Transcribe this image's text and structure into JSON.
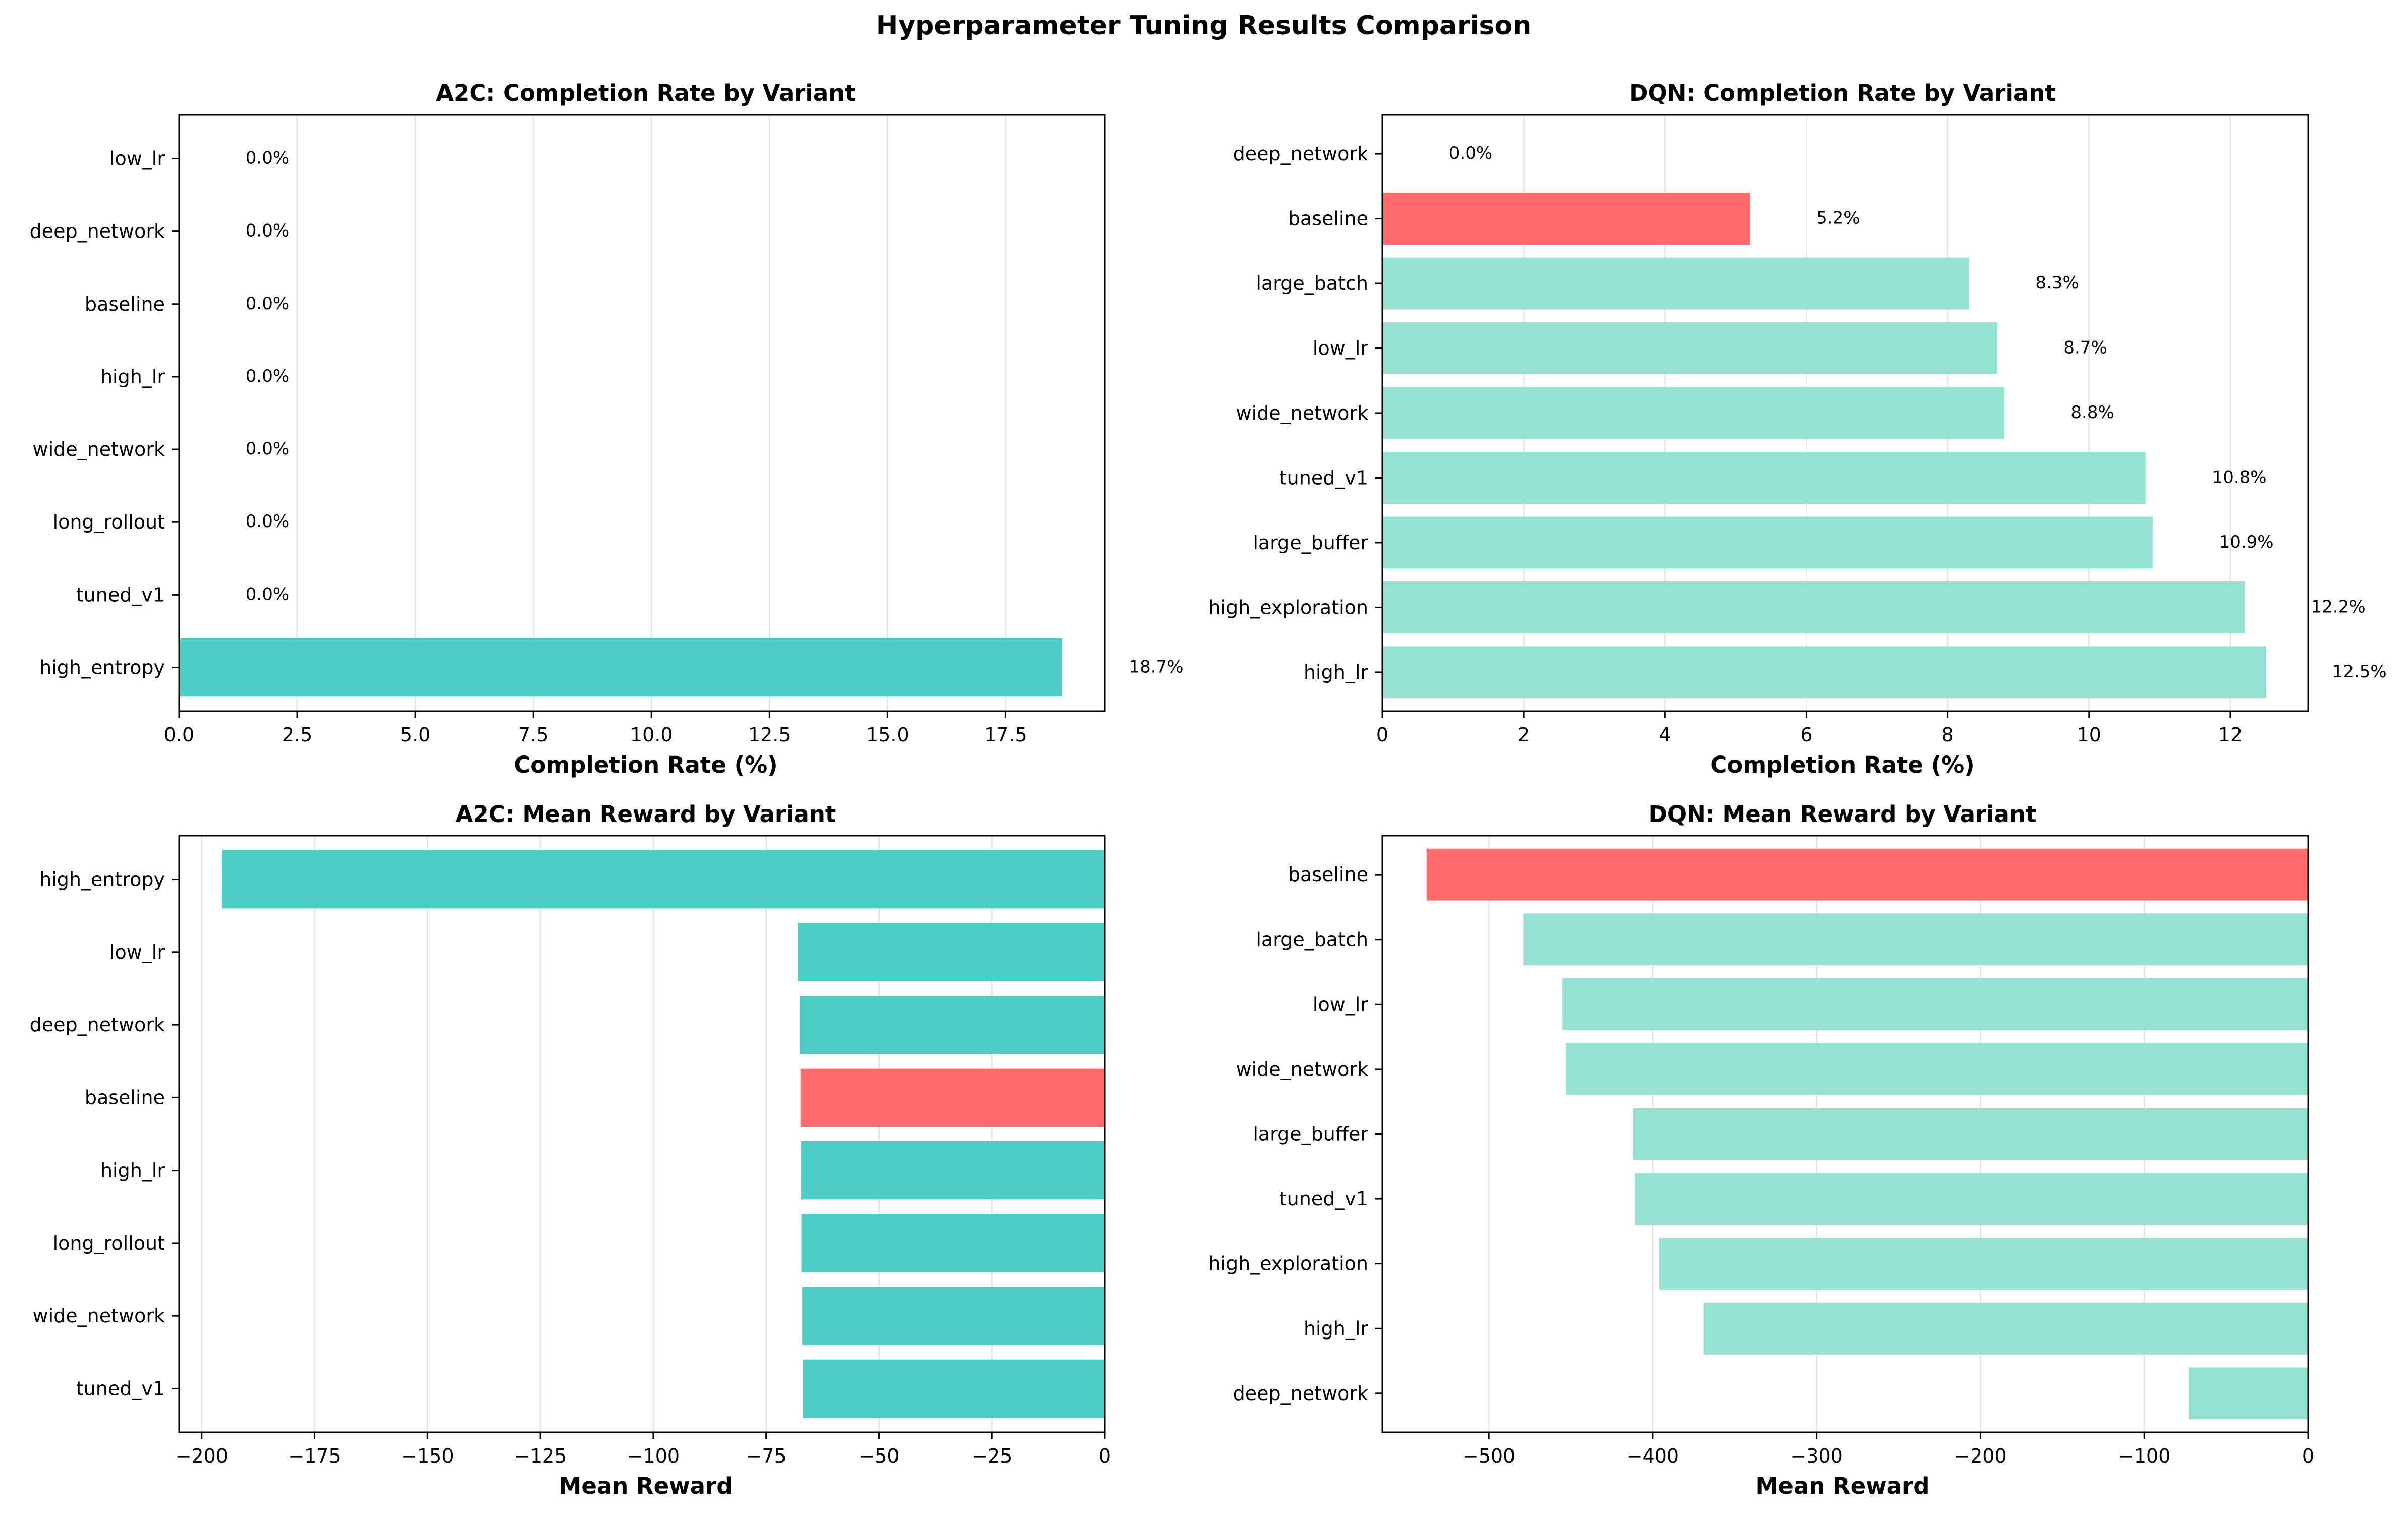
{
  "title": "Hyperparameter Tuning Results Comparison",
  "colors": {
    "default": "#4ecdc4",
    "baseline": "#ff6b6b",
    "dqn": "#95e1d3",
    "grid": "#e6e6e6"
  },
  "chart_data": [
    {
      "type": "bar",
      "orientation": "horizontal",
      "title": "A2C: Completion Rate by Variant",
      "xlabel": "Completion Rate (%)",
      "categories": [
        "low_lr",
        "deep_network",
        "baseline",
        "high_lr",
        "wide_network",
        "long_rollout",
        "tuned_v1",
        "high_entropy"
      ],
      "values": [
        0.0,
        0.0,
        0.0,
        0.0,
        0.0,
        0.0,
        0.0,
        18.7
      ],
      "value_labels": [
        "0.0%",
        "0.0%",
        "0.0%",
        "0.0%",
        "0.0%",
        "0.0%",
        "0.0%",
        "18.7%"
      ],
      "xlim": [
        0,
        19.6
      ],
      "xticks": [
        0,
        2.5,
        5,
        7.5,
        10,
        12.5,
        15,
        17.5
      ],
      "xtick_labels": [
        "0.0",
        "2.5",
        "5.0",
        "7.5",
        "10.0",
        "12.5",
        "15.0",
        "17.5"
      ],
      "highlight": "",
      "bar_color": "#4ecdc4",
      "grid": "x"
    },
    {
      "type": "bar",
      "orientation": "horizontal",
      "title": "DQN: Completion Rate by Variant",
      "xlabel": "Completion Rate (%)",
      "categories": [
        "deep_network",
        "baseline",
        "large_batch",
        "low_lr",
        "wide_network",
        "tuned_v1",
        "large_buffer",
        "high_exploration",
        "high_lr"
      ],
      "values": [
        0.0,
        5.2,
        8.3,
        8.7,
        8.8,
        10.8,
        10.9,
        12.2,
        12.5
      ],
      "value_labels": [
        "0.0%",
        "5.2%",
        "8.3%",
        "8.7%",
        "8.8%",
        "10.8%",
        "10.9%",
        "12.2%",
        "12.5%"
      ],
      "xlim": [
        0,
        13.1
      ],
      "xticks": [
        0,
        2,
        4,
        6,
        8,
        10,
        12
      ],
      "xtick_labels": [
        "0",
        "2",
        "4",
        "6",
        "8",
        "10",
        "12"
      ],
      "highlight": "baseline",
      "bar_color": "#95e1d3",
      "grid": "x"
    },
    {
      "type": "bar",
      "orientation": "horizontal",
      "title": "A2C: Mean Reward by Variant",
      "xlabel": "Mean Reward",
      "categories": [
        "high_entropy",
        "low_lr",
        "deep_network",
        "baseline",
        "high_lr",
        "long_rollout",
        "wide_network",
        "tuned_v1"
      ],
      "values": [
        -195.5,
        -68.0,
        -67.6,
        -67.4,
        -67.3,
        -67.2,
        -67.0,
        -66.8
      ],
      "xlim": [
        -205,
        0
      ],
      "xticks": [
        -200,
        -175,
        -150,
        -125,
        -100,
        -75,
        -50,
        -25,
        0
      ],
      "xtick_labels": [
        "−200",
        "−175",
        "−150",
        "−125",
        "−100",
        "−75",
        "−50",
        "−25",
        "0"
      ],
      "highlight": "baseline",
      "bar_color": "#4ecdc4",
      "grid": "x"
    },
    {
      "type": "bar",
      "orientation": "horizontal",
      "title": "DQN: Mean Reward by Variant",
      "xlabel": "Mean Reward",
      "categories": [
        "baseline",
        "large_batch",
        "low_lr",
        "wide_network",
        "large_buffer",
        "tuned_v1",
        "high_exploration",
        "high_lr",
        "deep_network"
      ],
      "values": [
        -538,
        -479,
        -455,
        -453,
        -412,
        -411,
        -396,
        -369,
        -73
      ],
      "xlim": [
        -565,
        0
      ],
      "xticks": [
        -500,
        -400,
        -300,
        -200,
        -100,
        0
      ],
      "xtick_labels": [
        "−500",
        "−400",
        "−300",
        "−200",
        "−100",
        "0"
      ],
      "highlight": "baseline",
      "bar_color": "#95e1d3",
      "grid": "x"
    }
  ]
}
